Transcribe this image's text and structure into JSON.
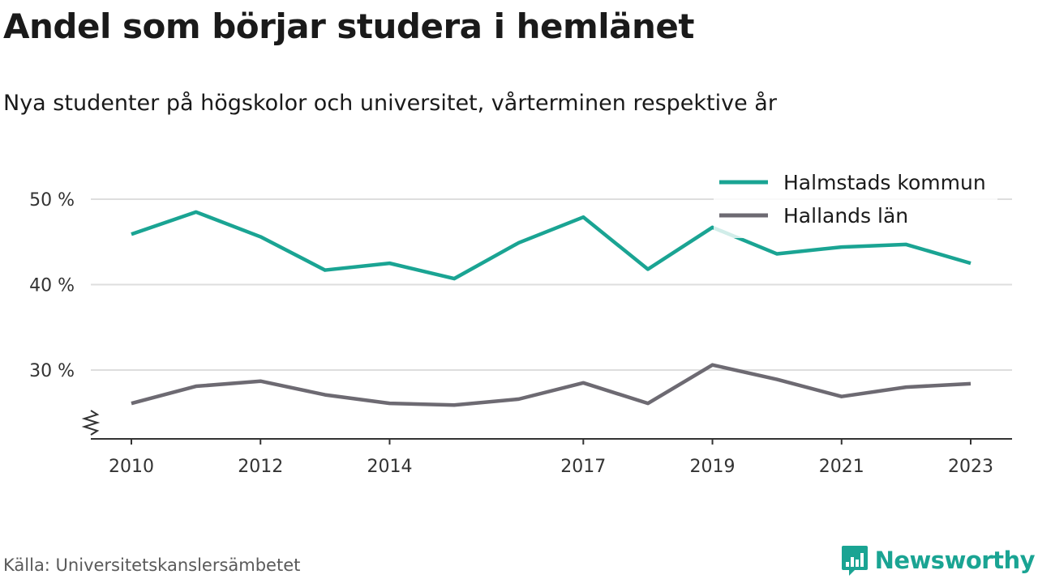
{
  "title": "Andel som börjar studera i hemlänet",
  "subtitle": "Nya studenter på högskolor och universitet, vårterminen respektive år",
  "source": "Källa: Universitetskanslersämbetet",
  "brand": {
    "name": "Newsworthy",
    "icon": "newsworthy-logo-icon",
    "color": "#1aa493"
  },
  "chart_data": {
    "type": "line",
    "title": "Andel som börjar studera i hemlänet",
    "subtitle": "Nya studenter på högskolor och universitet, vårterminen respektive år",
    "xlabel": "",
    "ylabel": "",
    "x": [
      2010,
      2011,
      2012,
      2013,
      2014,
      2015,
      2016,
      2017,
      2018,
      2019,
      2020,
      2021,
      2022,
      2023
    ],
    "x_ticks": [
      "2010",
      "2012",
      "2014",
      "2017",
      "2019",
      "2021",
      "2023"
    ],
    "y_ticks": [
      {
        "value": 30,
        "label": "30 %"
      },
      {
        "value": 40,
        "label": "40 %"
      },
      {
        "value": 50,
        "label": "50 %"
      }
    ],
    "xlim": [
      2010,
      2023
    ],
    "ylim": [
      22,
      50
    ],
    "y_axis_break": true,
    "grid": true,
    "legend_position": "top-right",
    "series": [
      {
        "name": "Halmstads kommun",
        "color": "#1aa493",
        "values": [
          45.9,
          48.5,
          45.6,
          41.7,
          42.5,
          40.7,
          44.9,
          47.9,
          41.8,
          46.7,
          43.6,
          44.4,
          44.7,
          42.5
        ]
      },
      {
        "name": "Hallands län",
        "color": "#6d6a72",
        "values": [
          26.1,
          28.1,
          28.7,
          27.1,
          26.1,
          25.9,
          26.6,
          28.5,
          26.1,
          30.6,
          28.9,
          26.9,
          28.0,
          28.4
        ]
      }
    ]
  }
}
